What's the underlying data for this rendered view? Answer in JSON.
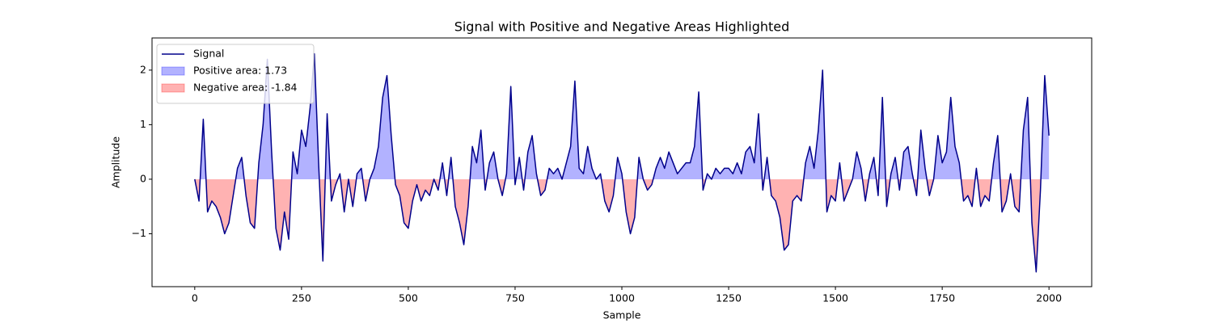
{
  "chart_data": {
    "type": "line",
    "title": "Signal with Positive and Negative Areas Highlighted",
    "x_label": "Sample",
    "y_label": "Amplitude",
    "xlim": [
      -100,
      2100
    ],
    "ylim": [
      -1.97,
      2.59
    ],
    "xticks": [
      0,
      250,
      500,
      750,
      1000,
      1250,
      1500,
      1750,
      2000
    ],
    "yticks": [
      {
        "value": -1,
        "label": "−1"
      },
      0,
      1,
      2
    ],
    "legend": "upper left",
    "series": [
      {
        "name": "Signal",
        "color": "#00008b",
        "x": [
          0,
          10,
          20,
          30,
          40,
          50,
          60,
          70,
          80,
          90,
          100,
          110,
          120,
          130,
          140,
          150,
          160,
          170,
          180,
          190,
          200,
          210,
          220,
          230,
          240,
          250,
          260,
          270,
          280,
          290,
          300,
          310,
          320,
          330,
          340,
          350,
          360,
          370,
          380,
          390,
          400,
          410,
          420,
          430,
          440,
          450,
          460,
          470,
          480,
          490,
          500,
          510,
          520,
          530,
          540,
          550,
          560,
          570,
          580,
          590,
          600,
          610,
          620,
          630,
          640,
          650,
          660,
          670,
          680,
          690,
          700,
          710,
          720,
          730,
          740,
          750,
          760,
          770,
          780,
          790,
          800,
          810,
          820,
          830,
          840,
          850,
          860,
          870,
          880,
          890,
          900,
          910,
          920,
          930,
          940,
          950,
          960,
          970,
          980,
          990,
          1000,
          1010,
          1020,
          1030,
          1040,
          1050,
          1060,
          1070,
          1080,
          1090,
          1100,
          1110,
          1120,
          1130,
          1140,
          1150,
          1160,
          1170,
          1180,
          1190,
          1200,
          1210,
          1220,
          1230,
          1240,
          1250,
          1260,
          1270,
          1280,
          1290,
          1300,
          1310,
          1320,
          1330,
          1340,
          1350,
          1360,
          1370,
          1380,
          1390,
          1400,
          1410,
          1420,
          1430,
          1440,
          1450,
          1460,
          1470,
          1480,
          1490,
          1500,
          1510,
          1520,
          1530,
          1540,
          1550,
          1560,
          1570,
          1580,
          1590,
          1600,
          1610,
          1620,
          1630,
          1640,
          1650,
          1660,
          1670,
          1680,
          1690,
          1700,
          1710,
          1720,
          1730,
          1740,
          1750,
          1760,
          1770,
          1780,
          1790,
          1800,
          1810,
          1820,
          1830,
          1840,
          1850,
          1860,
          1870,
          1880,
          1890,
          1900,
          1910,
          1920,
          1930,
          1940,
          1950,
          1960,
          1970,
          1980,
          1990,
          2000
        ],
        "values": [
          0,
          -0.4,
          1.1,
          -0.6,
          -0.4,
          -0.5,
          -0.7,
          -1.0,
          -0.8,
          -0.3,
          0.2,
          0.4,
          -0.3,
          -0.8,
          -0.9,
          0.3,
          1.0,
          2.2,
          0.5,
          -0.9,
          -1.3,
          -0.6,
          -1.1,
          0.5,
          0.1,
          0.9,
          0.6,
          1.3,
          2.3,
          0.3,
          -1.5,
          1.2,
          -0.4,
          -0.1,
          0.1,
          -0.6,
          0.0,
          -0.5,
          0.1,
          0.2,
          -0.4,
          0.0,
          0.2,
          0.6,
          1.5,
          1.9,
          0.8,
          -0.1,
          -0.3,
          -0.8,
          -0.9,
          -0.4,
          -0.1,
          -0.4,
          -0.2,
          -0.3,
          0.0,
          -0.2,
          0.3,
          -0.3,
          0.4,
          -0.5,
          -0.8,
          -1.2,
          -0.5,
          0.6,
          0.3,
          0.9,
          -0.2,
          0.3,
          0.5,
          0.0,
          -0.3,
          0.1,
          1.7,
          -0.1,
          0.4,
          -0.2,
          0.5,
          0.8,
          0.1,
          -0.3,
          -0.2,
          0.2,
          0.1,
          0.2,
          0.0,
          0.3,
          0.6,
          1.8,
          0.2,
          0.1,
          0.6,
          0.2,
          0.0,
          0.1,
          -0.4,
          -0.6,
          -0.3,
          0.4,
          0.1,
          -0.6,
          -1.0,
          -0.7,
          0.4,
          0.0,
          -0.2,
          -0.1,
          0.2,
          0.4,
          0.2,
          0.5,
          0.3,
          0.1,
          0.2,
          0.3,
          0.3,
          0.6,
          1.6,
          -0.2,
          0.1,
          0.0,
          0.2,
          0.1,
          0.2,
          0.2,
          0.1,
          0.3,
          0.1,
          0.5,
          0.6,
          0.3,
          1.2,
          -0.2,
          0.4,
          -0.3,
          -0.4,
          -0.7,
          -1.3,
          -1.2,
          -0.4,
          -0.3,
          -0.4,
          0.3,
          0.6,
          0.2,
          0.9,
          2.0,
          -0.6,
          -0.3,
          -0.4,
          0.3,
          -0.4,
          -0.2,
          0.0,
          0.5,
          0.2,
          -0.4,
          0.1,
          0.4,
          -0.3,
          1.5,
          -0.5,
          0.1,
          0.4,
          -0.2,
          0.5,
          0.6,
          0.1,
          -0.3,
          0.9,
          0.2,
          -0.3,
          0.0,
          0.8,
          0.3,
          0.5,
          1.5,
          0.6,
          0.3,
          -0.4,
          -0.3,
          -0.5,
          0.2,
          -0.5,
          -0.3,
          -0.4,
          0.3,
          0.8,
          -0.6,
          -0.4,
          0.1,
          -0.5,
          -0.6,
          0.9,
          1.5,
          -0.8,
          -1.7,
          -0.2,
          1.9,
          0.8
        ]
      }
    ],
    "areas": [
      {
        "name": "Positive area: 1.73",
        "side": "positive",
        "color": "#0000ff"
      },
      {
        "name": "Negative area: -1.84",
        "side": "negative",
        "color": "#ff0000"
      }
    ]
  }
}
